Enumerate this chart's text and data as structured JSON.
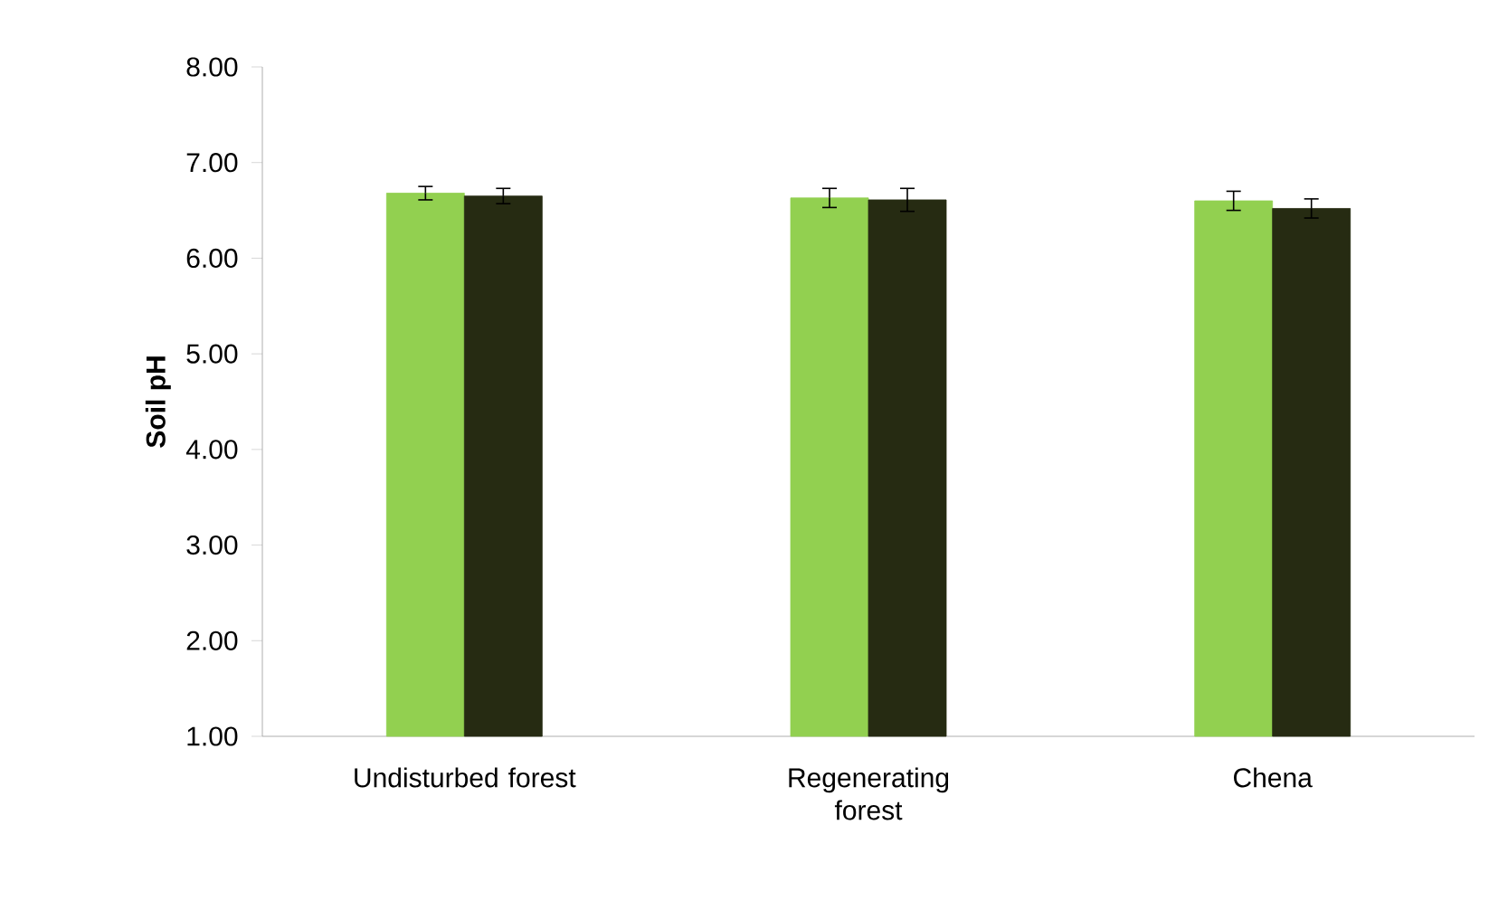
{
  "chart_data": {
    "type": "bar",
    "ylabel": "Soil pH",
    "categories": [
      "Undisturbed forest",
      "Regenerating forest",
      "Chena"
    ],
    "series": [
      {
        "color": "#92d050",
        "values": [
          6.68,
          6.63,
          6.6
        ],
        "errors": [
          0.07,
          0.1,
          0.1
        ]
      },
      {
        "color": "#262b12",
        "values": [
          6.65,
          6.61,
          6.52
        ],
        "errors": [
          0.08,
          0.12,
          0.1
        ]
      }
    ],
    "ylim": [
      1,
      8
    ],
    "yticks": [
      {
        "value": 1,
        "label": "1.00"
      },
      {
        "value": 2,
        "label": "2.00"
      },
      {
        "value": 3,
        "label": "3.00"
      },
      {
        "value": 4,
        "label": "4.00"
      },
      {
        "value": 5,
        "label": "5.00"
      },
      {
        "value": 6,
        "label": "6.00"
      },
      {
        "value": 7,
        "label": "7.00"
      },
      {
        "value": 8,
        "label": "8.00"
      }
    ],
    "grid": false
  }
}
